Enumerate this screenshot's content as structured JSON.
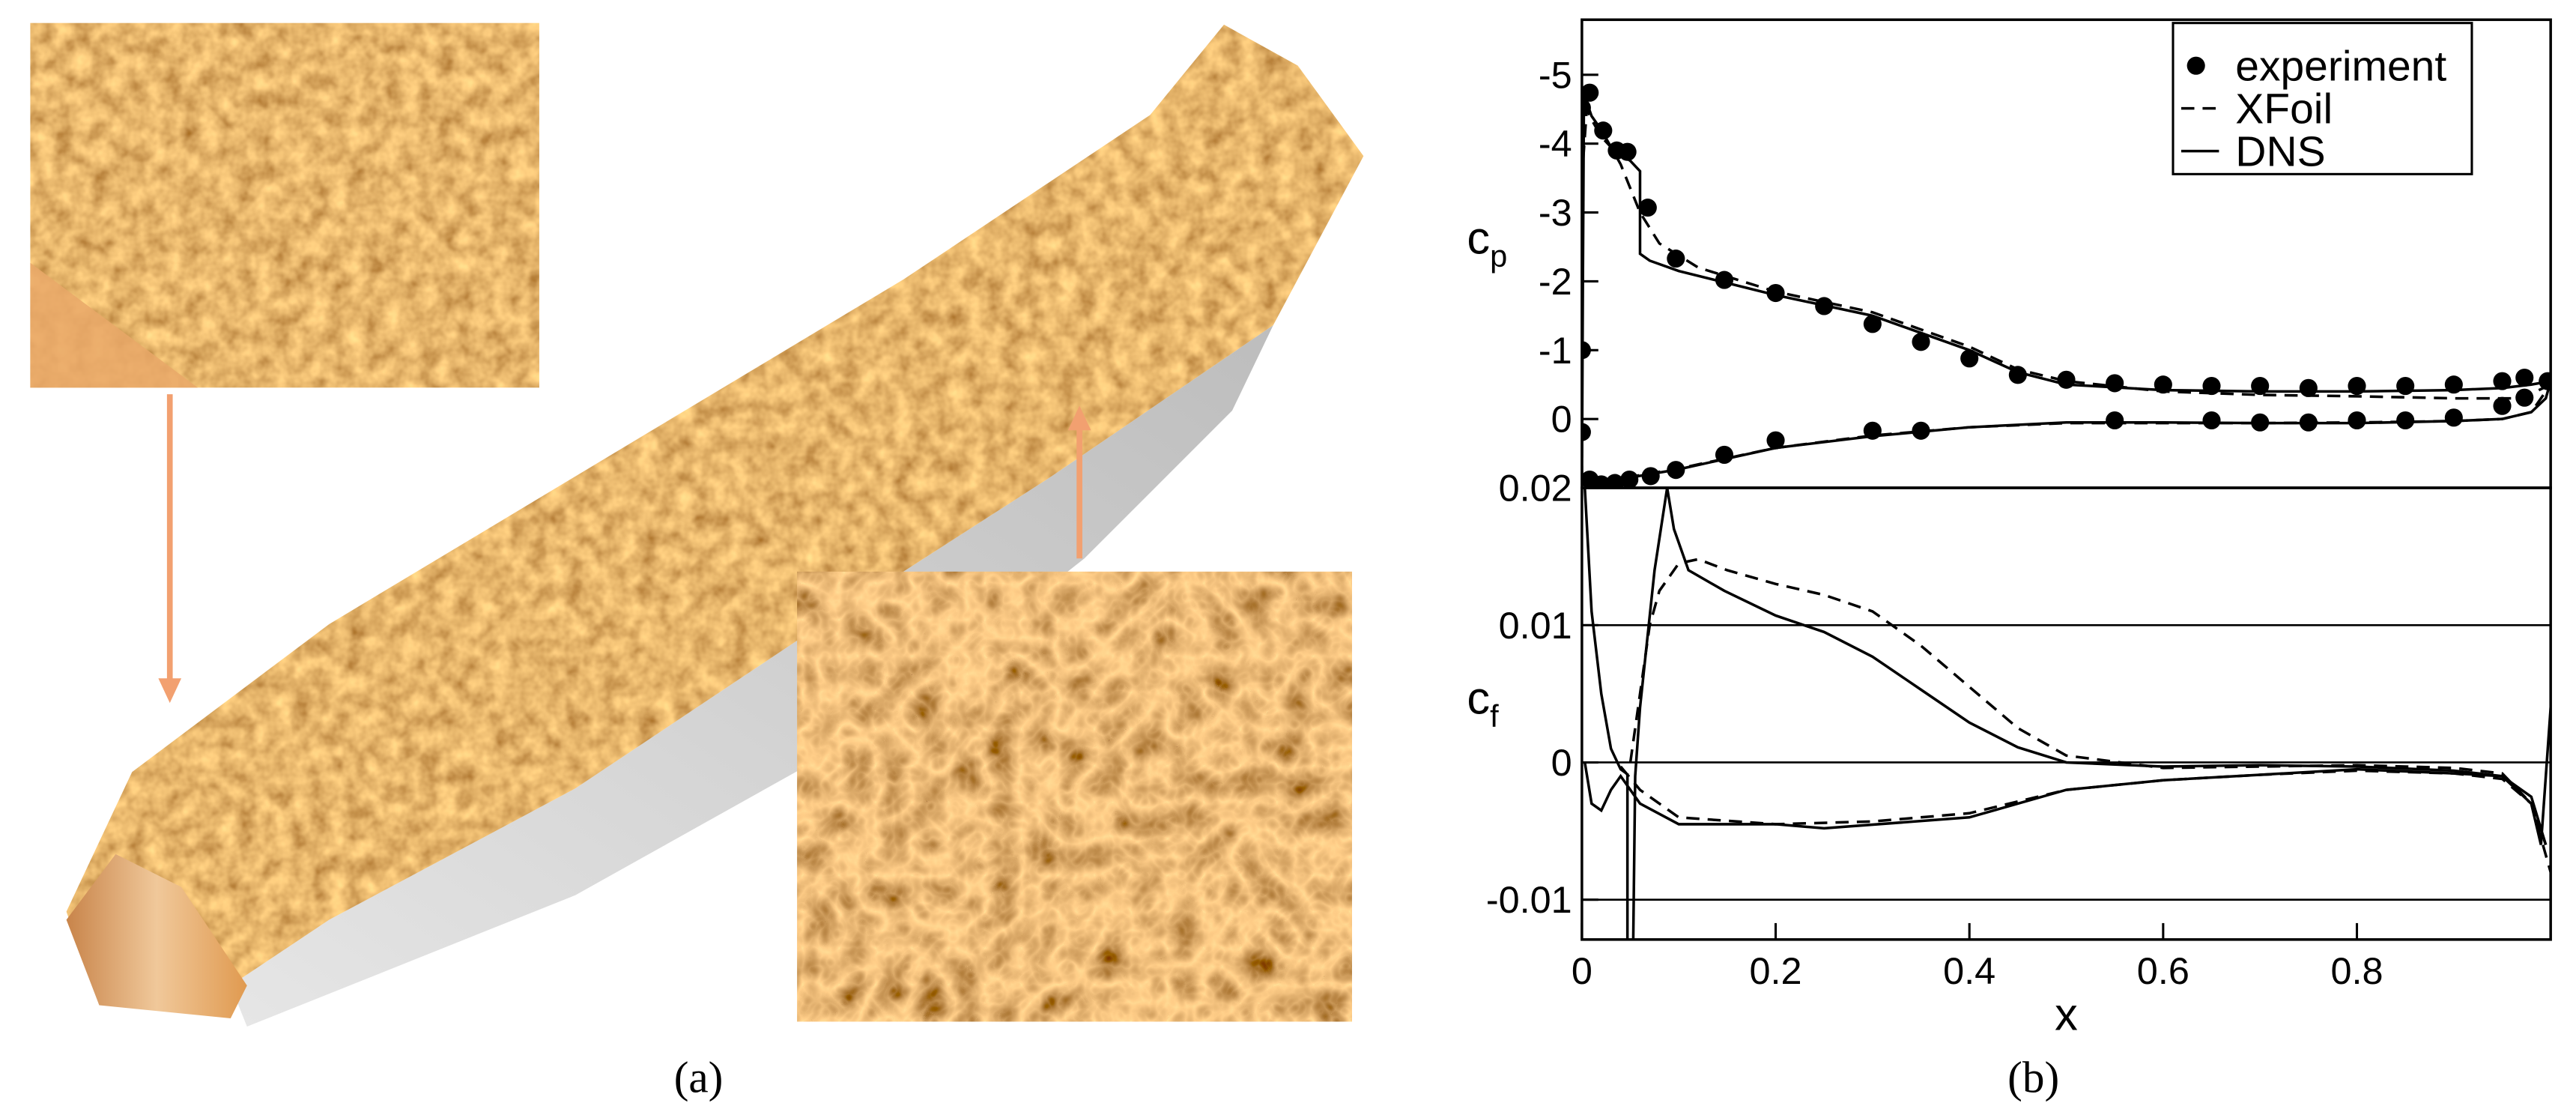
{
  "figure": {
    "panel_a_label": "(a)",
    "panel_b_label": "(b)"
  },
  "chart_data": [
    {
      "type": "line",
      "ylabel": "c",
      "ylabel_subscript": "p",
      "xlim": [
        0,
        1
      ],
      "ylim": [
        1,
        -5.8
      ],
      "yticks": [
        -5,
        -4,
        -3,
        -2,
        -1,
        0
      ],
      "legend": "upper right",
      "grid": false,
      "series": [
        {
          "name": "experiment",
          "color": "#000000",
          "style": "markers",
          "x": [
            0.0,
            0.008,
            0.022,
            0.036,
            0.047,
            0.068,
            0.097,
            0.147,
            0.2,
            0.25,
            0.3,
            0.35,
            0.4,
            0.45,
            0.5,
            0.55,
            0.6,
            0.65,
            0.7,
            0.75,
            0.8,
            0.85,
            0.9,
            0.95,
            0.973,
            0.997,
            0.0,
            0.0,
            0.008,
            0.02,
            0.034,
            0.049,
            0.071,
            0.097,
            0.147,
            0.2,
            0.3,
            0.35,
            0.55,
            0.65,
            0.7,
            0.75,
            0.8,
            0.85,
            0.9,
            0.95,
            0.973
          ],
          "values": [
            -4.52,
            -4.74,
            -4.19,
            -3.9,
            -3.88,
            -3.07,
            -2.33,
            -2.02,
            -1.83,
            -1.64,
            -1.38,
            -1.12,
            -0.88,
            -0.64,
            -0.57,
            -0.52,
            -0.5,
            -0.48,
            -0.48,
            -0.45,
            -0.48,
            -0.48,
            -0.5,
            -0.55,
            -0.6,
            -0.55,
            -1.0,
            0.19,
            0.88,
            0.95,
            0.93,
            0.88,
            0.83,
            0.74,
            0.52,
            0.31,
            0.17,
            0.17,
            0.02,
            0.02,
            0.05,
            0.05,
            0.02,
            0.02,
            -0.02,
            -0.19,
            -0.31
          ]
        },
        {
          "name": "XFoil",
          "color": "#000000",
          "style": "dashed",
          "x": [
            1.0,
            0.97,
            0.9,
            0.8,
            0.7,
            0.6,
            0.5,
            0.45,
            0.4,
            0.35,
            0.3,
            0.2,
            0.12,
            0.08,
            0.06,
            0.04,
            0.03,
            0.02,
            0.01,
            0.005,
            0.0,
            0.0,
            0.005,
            0.01,
            0.02,
            0.05,
            0.1,
            0.2,
            0.3,
            0.4,
            0.5,
            0.6,
            0.7,
            0.8,
            0.9,
            0.95,
            0.98,
            1.0
          ],
          "values": [
            -0.5,
            -0.3,
            -0.3,
            -0.33,
            -0.35,
            -0.4,
            -0.55,
            -0.72,
            -1.05,
            -1.3,
            -1.55,
            -1.85,
            -2.2,
            -2.55,
            -3.0,
            -3.7,
            -3.95,
            -4.1,
            -4.35,
            -4.5,
            -3.5,
            0.95,
            0.97,
            0.95,
            0.92,
            0.84,
            0.72,
            0.42,
            0.24,
            0.12,
            0.06,
            0.06,
            0.06,
            0.05,
            0.03,
            0.0,
            -0.1,
            -0.5
          ]
        },
        {
          "name": "DNS",
          "color": "#000000",
          "style": "solid",
          "x": [
            1.0,
            0.98,
            0.95,
            0.9,
            0.8,
            0.7,
            0.6,
            0.5,
            0.45,
            0.4,
            0.35,
            0.3,
            0.2,
            0.1,
            0.07,
            0.06,
            0.06,
            0.05,
            0.04,
            0.03,
            0.02,
            0.01,
            0.005,
            0.002,
            0.001,
            0.0,
            0.005,
            0.01,
            0.02,
            0.05,
            0.1,
            0.2,
            0.3,
            0.4,
            0.5,
            0.6,
            0.7,
            0.8,
            0.9,
            0.95,
            0.98,
            0.995,
            1.0
          ],
          "values": [
            -0.55,
            -0.5,
            -0.45,
            -0.42,
            -0.4,
            -0.4,
            -0.42,
            -0.5,
            -0.68,
            -1.0,
            -1.25,
            -1.5,
            -1.8,
            -2.15,
            -2.3,
            -2.4,
            -3.6,
            -3.75,
            -3.85,
            -3.95,
            -4.2,
            -4.4,
            -4.6,
            -4.5,
            -2.0,
            0.95,
            0.97,
            0.95,
            0.92,
            0.85,
            0.73,
            0.42,
            0.25,
            0.12,
            0.05,
            0.05,
            0.06,
            0.06,
            0.03,
            0.0,
            -0.1,
            -0.3,
            -0.55
          ]
        }
      ]
    },
    {
      "type": "line",
      "ylabel": "c",
      "ylabel_subscript": "f",
      "xlabel": "x",
      "xlim": [
        0,
        1
      ],
      "ylim": [
        -0.0129,
        0.02
      ],
      "yticks": [
        -0.01,
        0,
        0.01,
        0.02
      ],
      "xticks": [
        0,
        0.2,
        0.4,
        0.6,
        0.8
      ],
      "grid": true,
      "series": [
        {
          "color": "#000000",
          "style": "dashed",
          "x": [
            0.05,
            0.06,
            0.07,
            0.08,
            0.1,
            0.12,
            0.15,
            0.2,
            0.25,
            0.3,
            0.35,
            0.4,
            0.45,
            0.5,
            0.6,
            0.7,
            0.8,
            0.9,
            0.95,
            0.98,
            1.0,
            null,
            0.04,
            0.06,
            0.1,
            0.2,
            0.3,
            0.4,
            0.5,
            0.6,
            0.7,
            0.8,
            0.9,
            0.95,
            0.98,
            0.995
          ],
          "values": [
            0,
            0.005,
            0.01,
            0.0125,
            0.0145,
            0.0148,
            0.014,
            0.013,
            0.0122,
            0.011,
            0.0085,
            0.0055,
            0.0025,
            0.0005,
            -0.0004,
            -0.0003,
            -0.0002,
            -0.0004,
            -0.0008,
            -0.003,
            -0.008,
            null,
            -0.0003,
            -0.002,
            -0.004,
            -0.0045,
            -0.0043,
            -0.0037,
            -0.002,
            -0.0013,
            -0.0009,
            -0.0006,
            -0.0008,
            -0.0012,
            -0.003,
            -0.006
          ]
        },
        {
          "color": "#000000",
          "style": "solid",
          "x": [
            0.003,
            0.01,
            0.02,
            0.03,
            0.04,
            0.046,
            null,
            0.047,
            0.047,
            null,
            0.053,
            0.055,
            0.06,
            0.075,
            0.088,
            0.095,
            0.11,
            0.147,
            0.2,
            0.25,
            0.3,
            0.35,
            0.4,
            0.45,
            0.5,
            0.6,
            0.7,
            0.8,
            0.9,
            0.95,
            0.98,
            0.99,
            1.0,
            null,
            0.003,
            0.01,
            0.02,
            0.03,
            0.04,
            0.06,
            0.1,
            0.2,
            0.25,
            0.4,
            0.5,
            0.6,
            0.7,
            0.8,
            0.9,
            0.95,
            0.98,
            0.995
          ],
          "values": [
            0.02,
            0.011,
            0.005,
            0.001,
            -0.0005,
            -0.0008,
            null,
            -0.0008,
            -0.0129,
            null,
            -0.0129,
            -0.001,
            0.004,
            0.014,
            0.02,
            0.017,
            0.014,
            0.0125,
            0.0107,
            0.0095,
            0.0077,
            0.0053,
            0.0029,
            0.0011,
            0,
            -0.0003,
            -0.0002,
            -0.0003,
            -0.0006,
            -0.001,
            -0.003,
            -0.006,
            0.004,
            null,
            0.0,
            -0.003,
            -0.0035,
            -0.002,
            -0.001,
            -0.003,
            -0.0045,
            -0.0045,
            -0.0048,
            -0.004,
            -0.002,
            -0.0013,
            -0.0009,
            -0.0005,
            -0.0008,
            -0.001,
            -0.0025,
            -0.006
          ]
        }
      ]
    }
  ]
}
